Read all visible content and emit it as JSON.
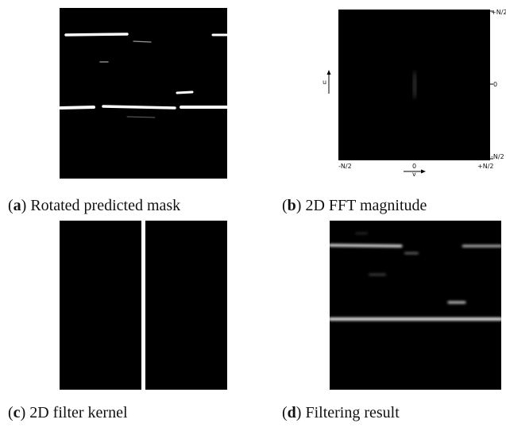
{
  "panels": [
    {
      "caption": {
        "prefix": "(",
        "letter": "a",
        "suffix": ") Rotated predicted mask"
      }
    },
    {
      "caption": {
        "prefix": "(",
        "letter": "b",
        "suffix": ") 2D FFT magnitude"
      },
      "axes": {
        "u_label": "u",
        "v_label": "v",
        "right_ticks": [
          "+N/2",
          "0",
          "-N/2"
        ],
        "bottom_ticks": [
          "-N/2",
          "0",
          "+N/2"
        ]
      }
    },
    {
      "caption": {
        "prefix": "(",
        "letter": "c",
        "suffix": ") 2D filter kernel"
      }
    },
    {
      "caption": {
        "prefix": "(",
        "letter": "d",
        "suffix": ") Filtering result"
      }
    }
  ]
}
